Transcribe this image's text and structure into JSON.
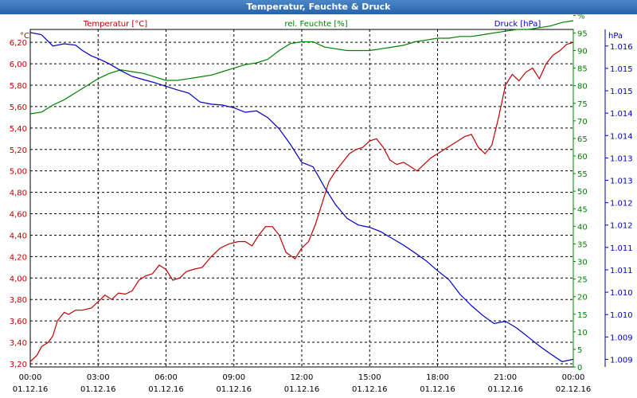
{
  "window": {
    "title": "Temperatur, Feuchte & Druck"
  },
  "colors": {
    "temperature": "#c00000",
    "humidity": "#008000",
    "pressure": "#0000c0",
    "grid": "#000000"
  },
  "chart_data": {
    "type": "line",
    "title": "Temperatur, Feuchte & Druck",
    "grid": true,
    "x_ticks": [
      {
        "time": "00:00",
        "date": "01.12.16"
      },
      {
        "time": "03:00",
        "date": "01.12.16"
      },
      {
        "time": "06:00",
        "date": "01.12.16"
      },
      {
        "time": "09:00",
        "date": "01.12.16"
      },
      {
        "time": "12:00",
        "date": "01.12.16"
      },
      {
        "time": "15:00",
        "date": "01.12.16"
      },
      {
        "time": "18:00",
        "date": "01.12.16"
      },
      {
        "time": "21:00",
        "date": "01.12.16"
      },
      {
        "time": "00:00",
        "date": "02.12.16"
      }
    ],
    "axes": {
      "temperature": {
        "unit": "°C",
        "label": "Temperatur [°C]",
        "ylim": [
          3.17,
          6.32
        ],
        "ticks": [
          "3,20",
          "3,40",
          "3,60",
          "3,80",
          "4,00",
          "4,20",
          "4,40",
          "4,60",
          "4,80",
          "5,00",
          "5,20",
          "5,40",
          "5,60",
          "5,80",
          "6,00",
          "6,20"
        ]
      },
      "humidity": {
        "unit": "%",
        "label": "rel. Feuchte [%]",
        "ylim": [
          0,
          96
        ],
        "ticks": [
          "0",
          "5",
          "10",
          "15",
          "20",
          "25",
          "30",
          "35",
          "40",
          "45",
          "50",
          "55",
          "60",
          "65",
          "70",
          "75",
          "80",
          "85",
          "90",
          "95",
          "%"
        ]
      },
      "pressure": {
        "unit": "hPa",
        "ticks": [
          "1.016",
          "1.015",
          "1.015",
          "1.014",
          "1.014",
          "1.013",
          "1.013",
          "1.012",
          "1.012",
          "1.011",
          "1.011",
          "1.010",
          "1.010",
          "1.009",
          "1.009"
        ],
        "ylim": [
          1008.83,
          1016.37
        ]
      }
    },
    "series": [
      {
        "name": "Temperatur [°C]",
        "axis": "temperature",
        "color": "#c00000",
        "x_hours": [
          0,
          0.3,
          0.5,
          0.8,
          1.0,
          1.2,
          1.5,
          1.7,
          2.0,
          2.3,
          2.7,
          3.0,
          3.3,
          3.6,
          3.9,
          4.2,
          4.5,
          4.8,
          5.1,
          5.4,
          5.7,
          6.0,
          6.3,
          6.6,
          6.9,
          7.2,
          7.6,
          8.0,
          8.4,
          8.8,
          9.2,
          9.5,
          9.8,
          10.1,
          10.4,
          10.7,
          11.0,
          11.3,
          11.7,
          12.0,
          12.3,
          12.6,
          12.9,
          13.2,
          13.5,
          13.8,
          14.1,
          14.4,
          14.7,
          15.0,
          15.3,
          15.6,
          15.9,
          16.2,
          16.5,
          16.8,
          17.1,
          17.4,
          17.7,
          18.0,
          18.3,
          18.6,
          18.9,
          19.2,
          19.5,
          19.8,
          20.1,
          20.4,
          20.7,
          21.0,
          21.3,
          21.6,
          21.9,
          22.2,
          22.5,
          22.8,
          23.1,
          23.4,
          23.7,
          24.0
        ],
        "values": [
          3.22,
          3.28,
          3.36,
          3.4,
          3.46,
          3.6,
          3.68,
          3.66,
          3.7,
          3.7,
          3.72,
          3.78,
          3.84,
          3.8,
          3.86,
          3.85,
          3.88,
          3.98,
          4.02,
          4.04,
          4.12,
          4.08,
          3.98,
          4.0,
          4.06,
          4.08,
          4.1,
          4.2,
          4.28,
          4.32,
          4.34,
          4.34,
          4.3,
          4.4,
          4.48,
          4.48,
          4.4,
          4.24,
          4.18,
          4.28,
          4.34,
          4.5,
          4.7,
          4.9,
          5.0,
          5.08,
          5.16,
          5.2,
          5.22,
          5.28,
          5.3,
          5.22,
          5.1,
          5.06,
          5.08,
          5.04,
          5.0,
          5.06,
          5.12,
          5.16,
          5.2,
          5.24,
          5.28,
          5.32,
          5.34,
          5.22,
          5.16,
          5.24,
          5.5,
          5.8,
          5.9,
          5.84,
          5.92,
          5.96,
          5.86,
          6.0,
          6.08,
          6.12,
          6.18,
          6.2
        ]
      },
      {
        "name": "rel. Feuchte [%]",
        "axis": "humidity",
        "color": "#008000",
        "x_hours": [
          0,
          0.5,
          1.0,
          1.5,
          2.0,
          2.5,
          3.0,
          3.5,
          4.0,
          4.5,
          5.0,
          5.5,
          6.0,
          6.5,
          7.0,
          7.5,
          8.0,
          8.5,
          9.0,
          9.5,
          10.0,
          10.5,
          11.0,
          11.5,
          12.0,
          12.5,
          13.0,
          13.5,
          14.0,
          14.5,
          15.0,
          15.5,
          16.0,
          16.5,
          17.0,
          17.5,
          18.0,
          18.5,
          19.0,
          19.5,
          20.0,
          20.5,
          21.0,
          21.5,
          22.0,
          22.5,
          23.0,
          23.5,
          24.0
        ],
        "values": [
          72.0,
          72.5,
          74.5,
          76.0,
          78.0,
          80.0,
          82.0,
          83.5,
          84.5,
          84.0,
          83.5,
          82.5,
          81.5,
          81.5,
          82.0,
          82.5,
          83.0,
          84.0,
          85.0,
          86.0,
          86.5,
          87.5,
          90.0,
          92.0,
          92.5,
          92.5,
          91.0,
          90.5,
          90.0,
          90.0,
          90.0,
          90.5,
          91.0,
          91.5,
          92.5,
          93.0,
          93.5,
          93.5,
          94.0,
          94.0,
          94.5,
          95.0,
          95.5,
          96.0,
          96.0,
          96.5,
          97.0,
          98.0,
          98.5
        ]
      },
      {
        "name": "Druck [hPa]",
        "axis": "pressure",
        "color": "#0000c0",
        "x_hours": [
          0,
          0.5,
          0.8,
          1.0,
          1.5,
          2.0,
          2.3,
          2.7,
          3.0,
          3.5,
          4.0,
          4.5,
          5.0,
          5.5,
          6.0,
          6.5,
          7.0,
          7.5,
          8.0,
          8.5,
          9.0,
          9.5,
          10.0,
          10.5,
          11.0,
          11.5,
          12.0,
          12.5,
          13.0,
          13.5,
          14.0,
          14.5,
          15.0,
          15.5,
          16.0,
          16.5,
          17.0,
          17.5,
          18.0,
          18.5,
          19.0,
          19.5,
          20.0,
          20.5,
          21.0,
          21.5,
          22.0,
          22.5,
          23.0,
          23.5,
          24.0
        ],
        "values": [
          1016.3,
          1016.25,
          1016.1,
          1016.0,
          1016.05,
          1016.02,
          1015.9,
          1015.78,
          1015.72,
          1015.6,
          1015.45,
          1015.32,
          1015.25,
          1015.18,
          1015.1,
          1015.02,
          1014.95,
          1014.75,
          1014.7,
          1014.68,
          1014.62,
          1014.52,
          1014.55,
          1014.4,
          1014.15,
          1013.8,
          1013.4,
          1013.3,
          1012.85,
          1012.45,
          1012.15,
          1012.0,
          1011.95,
          1011.85,
          1011.7,
          1011.55,
          1011.38,
          1011.2,
          1010.98,
          1010.78,
          1010.45,
          1010.2,
          1009.98,
          1009.8,
          1009.85,
          1009.7,
          1009.5,
          1009.3,
          1009.12,
          1008.95,
          1009.0
        ]
      }
    ]
  }
}
